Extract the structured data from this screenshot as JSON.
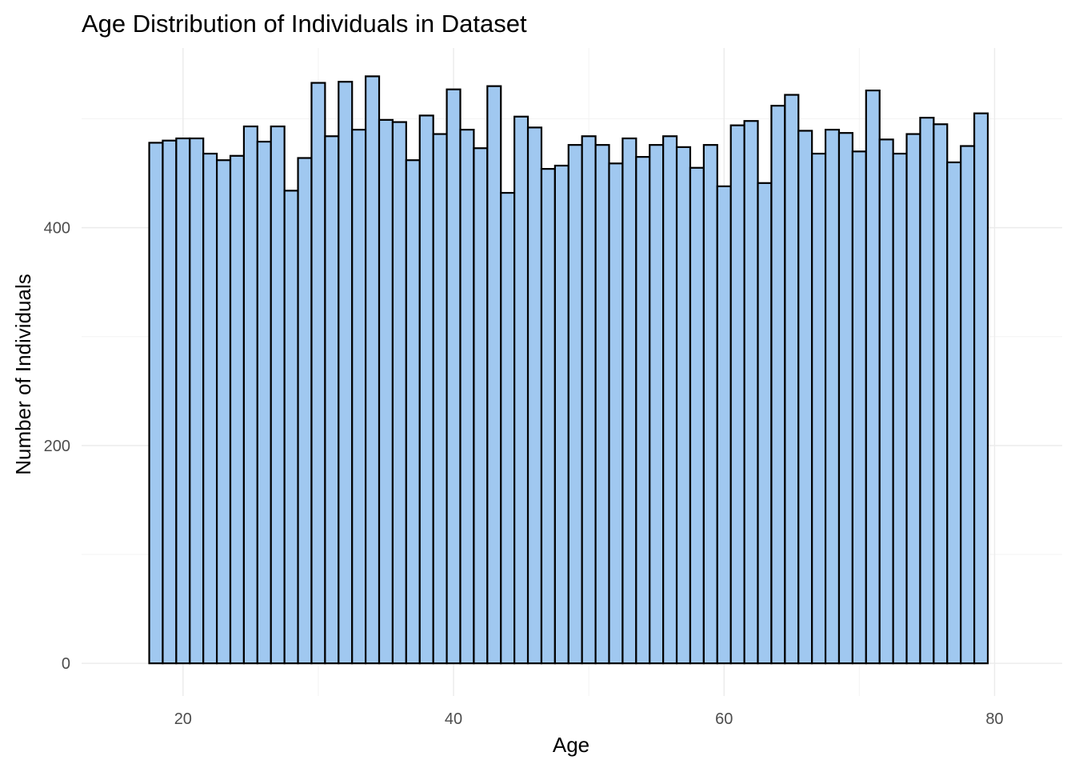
{
  "chart_data": {
    "type": "bar",
    "title": "Age Distribution of Individuals in Dataset",
    "xlabel": "Age",
    "ylabel": "Number of Individuals",
    "xlim": [
      12.5,
      85
    ],
    "ylim": [
      -30,
      565
    ],
    "x_ticks": [
      20,
      40,
      60,
      80
    ],
    "y_ticks": [
      0,
      200,
      400
    ],
    "x_minor": [
      30,
      50,
      70
    ],
    "y_minor": [
      100,
      300,
      500
    ],
    "grid": true,
    "bar_width": 1,
    "colors": {
      "fill": "#a0c8f0",
      "outline": "#000000",
      "grid": "#ebebeb",
      "background": "#ffffff"
    },
    "x": [
      18,
      19,
      20,
      21,
      22,
      23,
      24,
      25,
      26,
      27,
      28,
      29,
      30,
      31,
      32,
      33,
      34,
      35,
      36,
      37,
      38,
      39,
      40,
      41,
      42,
      43,
      44,
      45,
      46,
      47,
      48,
      49,
      50,
      51,
      52,
      53,
      54,
      55,
      56,
      57,
      58,
      59,
      60,
      61,
      62,
      63,
      64,
      65,
      66,
      67,
      68,
      69,
      70,
      71,
      72,
      73,
      74,
      75,
      76,
      77,
      78,
      79
    ],
    "values": [
      478,
      480,
      482,
      482,
      468,
      462,
      466,
      493,
      479,
      493,
      434,
      464,
      533,
      484,
      534,
      490,
      539,
      499,
      497,
      462,
      503,
      486,
      527,
      490,
      473,
      530,
      432,
      502,
      492,
      454,
      457,
      476,
      484,
      476,
      459,
      482,
      465,
      476,
      484,
      474,
      455,
      476,
      438,
      494,
      498,
      441,
      512,
      522,
      489,
      468,
      490,
      487,
      470,
      526,
      481,
      468,
      486,
      501,
      495,
      460,
      475,
      505
    ]
  }
}
